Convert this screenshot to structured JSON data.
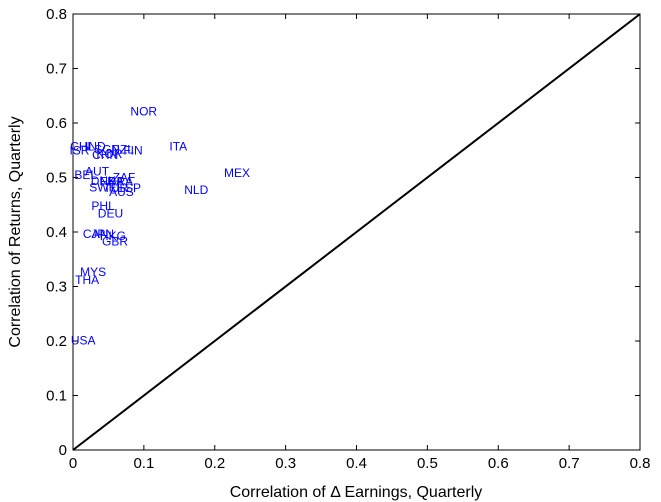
{
  "chart_data": {
    "type": "scatter",
    "title": "",
    "xlabel": "Correlation of Δ Earnings, Quarterly",
    "ylabel": "Correlation of Returns, Quarterly",
    "xlim": [
      0,
      0.8
    ],
    "ylim": [
      0,
      0.8
    ],
    "xticks": [
      "0",
      "0.1",
      "0.2",
      "0.3",
      "0.4",
      "0.5",
      "0.6",
      "0.7",
      "0.8"
    ],
    "yticks": [
      "0",
      "0.1",
      "0.2",
      "0.3",
      "0.4",
      "0.5",
      "0.6",
      "0.7",
      "0.8"
    ],
    "grid": false,
    "legend": "none",
    "point_color": "#0000ff",
    "reference_line": {
      "from": [
        0,
        0
      ],
      "to": [
        0.8,
        0.8
      ],
      "color": "#000000"
    },
    "points": [
      {
        "label": "NOR",
        "x": 0.081,
        "y": 0.621
      },
      {
        "label": "ITA",
        "x": 0.136,
        "y": 0.557
      },
      {
        "label": "MEX",
        "x": 0.213,
        "y": 0.508
      },
      {
        "label": "NLD",
        "x": 0.157,
        "y": 0.477
      },
      {
        "label": "CHL",
        "x": -0.004,
        "y": 0.557
      },
      {
        "label": "IND",
        "x": 0.017,
        "y": 0.557
      },
      {
        "label": "ISR",
        "x": -0.005,
        "y": 0.55
      },
      {
        "label": "SGP",
        "x": 0.03,
        "y": 0.551
      },
      {
        "label": "NZL",
        "x": 0.054,
        "y": 0.551
      },
      {
        "label": "FIN",
        "x": 0.071,
        "y": 0.55
      },
      {
        "label": "CHN",
        "x": 0.027,
        "y": 0.541
      },
      {
        "label": "KOR",
        "x": 0.033,
        "y": 0.543
      },
      {
        "label": "BEL",
        "x": 0.002,
        "y": 0.505
      },
      {
        "label": "AUT",
        "x": 0.017,
        "y": 0.511
      },
      {
        "label": "ZAF",
        "x": 0.056,
        "y": 0.5
      },
      {
        "label": "DNK",
        "x": 0.025,
        "y": 0.494
      },
      {
        "label": "FRA",
        "x": 0.038,
        "y": 0.493
      },
      {
        "label": "BRA",
        "x": 0.05,
        "y": 0.493
      },
      {
        "label": "SWE",
        "x": 0.023,
        "y": 0.482
      },
      {
        "label": "TUR",
        "x": 0.043,
        "y": 0.481
      },
      {
        "label": "ESP",
        "x": 0.062,
        "y": 0.481
      },
      {
        "label": "AUS",
        "x": 0.051,
        "y": 0.473
      },
      {
        "label": "PHL",
        "x": 0.026,
        "y": 0.448
      },
      {
        "label": "DEU",
        "x": 0.035,
        "y": 0.434
      },
      {
        "label": "CAN",
        "x": 0.014,
        "y": 0.396
      },
      {
        "label": "JPN",
        "x": 0.026,
        "y": 0.396
      },
      {
        "label": "HKG",
        "x": 0.038,
        "y": 0.393
      },
      {
        "label": "GBR",
        "x": 0.041,
        "y": 0.383
      },
      {
        "label": "MYS",
        "x": 0.01,
        "y": 0.327
      },
      {
        "label": "THA",
        "x": 0.003,
        "y": 0.312
      },
      {
        "label": "USA",
        "x": -0.003,
        "y": 0.201
      }
    ]
  }
}
